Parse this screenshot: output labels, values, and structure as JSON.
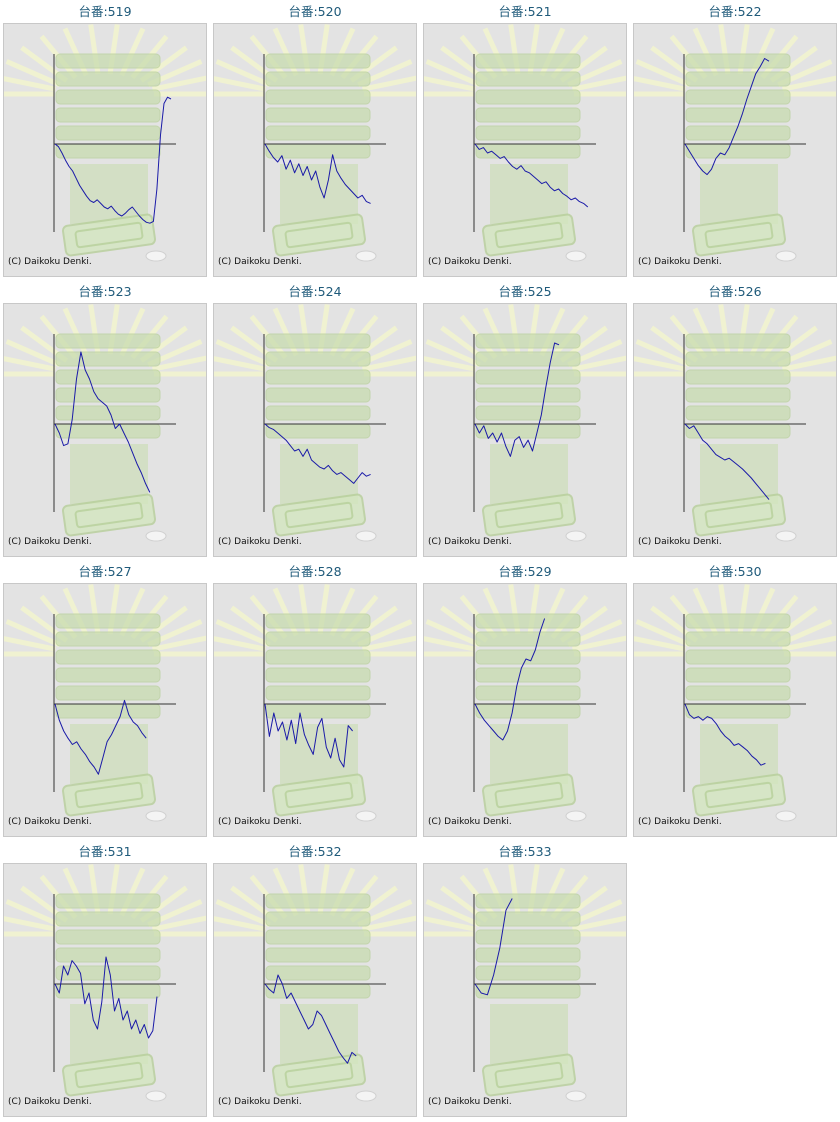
{
  "copyright": "(C) Daikoku Denki.",
  "colors": {
    "line": "#1a1aa8",
    "axis": "#333333",
    "panel": "#e3e3e3",
    "title": "#1f5a7a",
    "watermark": "#c8dcb0"
  },
  "chart_data": [
    {
      "type": "line",
      "title": "台番:519",
      "y": [
        0,
        -3,
        -10,
        -18,
        -25,
        -30,
        -38,
        -46,
        -52,
        -58,
        -63,
        -65,
        -62,
        -66,
        -70,
        -72,
        -69,
        -74,
        -78,
        -80,
        -77,
        -73,
        -70,
        -75,
        -80,
        -84,
        -87,
        -88,
        -86,
        -50,
        10,
        45,
        52,
        50
      ]
    },
    {
      "type": "line",
      "title": "台番:520",
      "y": [
        0,
        -8,
        -15,
        -20,
        -13,
        -28,
        -18,
        -32,
        -22,
        -35,
        -25,
        -40,
        -30,
        -48,
        -60,
        -40,
        -12,
        -30,
        -38,
        -45,
        -50,
        -55,
        -60,
        -57,
        -64,
        -66
      ]
    },
    {
      "type": "line",
      "title": "台番:521",
      "y": [
        0,
        -6,
        -4,
        -10,
        -8,
        -12,
        -16,
        -14,
        -20,
        -25,
        -28,
        -24,
        -30,
        -32,
        -36,
        -40,
        -44,
        -42,
        -48,
        -52,
        -50,
        -55,
        -58,
        -62,
        -60,
        -64,
        -66,
        -70
      ]
    },
    {
      "type": "line",
      "title": "台番:522",
      "y": [
        0,
        -8,
        -16,
        -24,
        -30,
        -34,
        -28,
        -16,
        -10,
        -12,
        -4,
        8,
        20,
        34,
        50,
        64,
        78,
        86,
        95,
        92
      ]
    },
    {
      "type": "line",
      "title": "台番:523",
      "y": [
        0,
        -10,
        -24,
        -22,
        5,
        50,
        80,
        60,
        50,
        36,
        28,
        24,
        20,
        10,
        -5,
        0,
        -10,
        -20,
        -32,
        -44,
        -54,
        -66,
        -76
      ]
    },
    {
      "type": "line",
      "title": "台番:524",
      "y": [
        0,
        -4,
        -6,
        -10,
        -14,
        -18,
        -24,
        -30,
        -28,
        -36,
        -28,
        -40,
        -44,
        -48,
        -50,
        -46,
        -52,
        -56,
        -54,
        -58,
        -62,
        -66,
        -60,
        -54,
        -58,
        -56
      ]
    },
    {
      "type": "line",
      "title": "台番:525",
      "y": [
        0,
        -10,
        -2,
        -16,
        -10,
        -20,
        -10,
        -25,
        -36,
        -18,
        -14,
        -26,
        -18,
        -30,
        -10,
        10,
        40,
        68,
        90,
        88
      ]
    },
    {
      "type": "line",
      "title": "台番:526",
      "y": [
        0,
        -5,
        -2,
        -10,
        -18,
        -22,
        -28,
        -34,
        -37,
        -40,
        -38,
        -42,
        -46,
        -50,
        -55,
        -60,
        -66,
        -72,
        -78,
        -84
      ]
    },
    {
      "type": "line",
      "title": "台番:527",
      "y": [
        0,
        -18,
        -30,
        -38,
        -45,
        -42,
        -50,
        -56,
        -64,
        -70,
        -78,
        -60,
        -42,
        -34,
        -24,
        -14,
        4,
        -12,
        -20,
        -24,
        -32,
        -38
      ]
    },
    {
      "type": "line",
      "title": "台番:528",
      "y": [
        0,
        -36,
        -10,
        -30,
        -20,
        -40,
        -18,
        -44,
        -10,
        -34,
        -46,
        -56,
        -26,
        -16,
        -48,
        -60,
        -38,
        -62,
        -70,
        -24,
        -30
      ]
    },
    {
      "type": "line",
      "title": "台番:529",
      "y": [
        0,
        -10,
        -18,
        -24,
        -30,
        -36,
        -40,
        -30,
        -10,
        20,
        40,
        50,
        48,
        60,
        80,
        95
      ]
    },
    {
      "type": "line",
      "title": "台番:530",
      "y": [
        0,
        -12,
        -16,
        -14,
        -18,
        -14,
        -16,
        -22,
        -30,
        -36,
        -40,
        -46,
        -44,
        -48,
        -52,
        -58,
        -62,
        -68,
        -66
      ]
    },
    {
      "type": "line",
      "title": "台番:531",
      "y": [
        0,
        -10,
        20,
        10,
        26,
        20,
        12,
        -22,
        -10,
        -40,
        -50,
        -20,
        30,
        10,
        -30,
        -16,
        -40,
        -30,
        -50,
        -40,
        -55,
        -45,
        -60,
        -52,
        -14
      ]
    },
    {
      "type": "line",
      "title": "台番:532",
      "y": [
        0,
        -6,
        -10,
        10,
        0,
        -16,
        -10,
        -20,
        -30,
        -40,
        -50,
        -45,
        -30,
        -35,
        -45,
        -55,
        -65,
        -75,
        -82,
        -88,
        -76,
        -80
      ]
    },
    {
      "type": "line",
      "title": "台番:533",
      "y": [
        0,
        -10,
        -12,
        10,
        40,
        82,
        95
      ]
    }
  ]
}
